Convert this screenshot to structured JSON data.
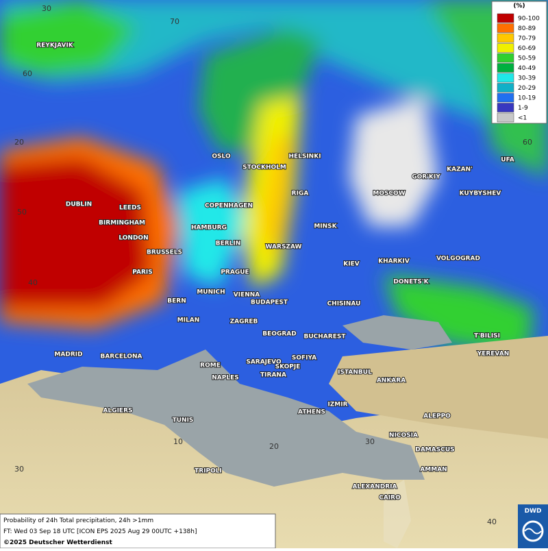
{
  "legend": {
    "title": "(%)",
    "items": [
      {
        "label": "90-100",
        "color": "#c00000"
      },
      {
        "label": "80-89",
        "color": "#ff7000"
      },
      {
        "label": "70-79",
        "color": "#ffc800"
      },
      {
        "label": "60-69",
        "color": "#f0f000"
      },
      {
        "label": "50-59",
        "color": "#30d030"
      },
      {
        "label": "40-49",
        "color": "#00b040"
      },
      {
        "label": "30-39",
        "color": "#20e8e8"
      },
      {
        "label": "20-29",
        "color": "#10b0c8"
      },
      {
        "label": "10-19",
        "color": "#2070f0"
      },
      {
        "label": "1-9",
        "color": "#3838c0"
      },
      {
        "label": "<1",
        "color": "#c8c8c8"
      }
    ]
  },
  "graticule": [
    "30",
    "70",
    "60",
    "20",
    "60",
    "50",
    "40",
    "10",
    "20",
    "30",
    "30",
    "40"
  ],
  "cities": [
    "REYKJAVIK",
    "OSLO",
    "STOCKHOLM",
    "HELSINKI",
    "GOR'KIY",
    "KAZAN'",
    "UFA",
    "MOSCOW",
    "KUYBYSHEV",
    "RIGA",
    "DUBLIN",
    "LEEDS",
    "COPENHAGEN",
    "BIRMINGHAM",
    "HAMBURG",
    "MINSK",
    "LONDON",
    "BERLIN",
    "WARSZAW",
    "BRUSSELS",
    "KIEV",
    "KHARKIV",
    "VOLGOGRAD",
    "PARIS",
    "PRAGUE",
    "DONETS'K",
    "MUNICH",
    "VIENNA",
    "BERN",
    "BUDAPEST",
    "CHISINAU",
    "MILAN",
    "ZAGREB",
    "BEOGRAD",
    "BUCHAREST",
    "T'BILISI",
    "MADRID",
    "BARCELONA",
    "ROME",
    "SARAJEVO",
    "SOFIYA",
    "YEREVAN",
    "SKOPJE",
    "NAPLES",
    "TIRANA",
    "ISTANBUL",
    "ANKARA",
    "ALGIERS",
    "IZMIR",
    "ATHENS",
    "ALEPPO",
    "TUNIS",
    "NICOSIA",
    "DAMASCUS",
    "AMMAN",
    "TRIPOLI",
    "ALEXANDRIA",
    "CAIRO"
  ],
  "caption": {
    "line1": "Probability of 24h Total precipitation, 24h >1mm",
    "line2": "FT: Wed 03 Sep 18 UTC [ICON EPS 2025 Aug 29 00UTC +138h]",
    "line3": "©2025 Deutscher Wetterdienst"
  },
  "logo": "DWD"
}
